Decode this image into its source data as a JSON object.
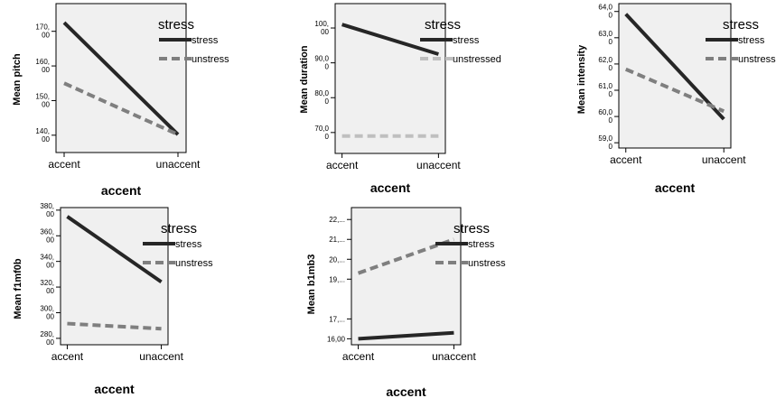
{
  "chart_data": [
    {
      "type": "line",
      "categories": [
        "accent",
        "unaccent"
      ],
      "xlabel": "accent",
      "ylabel": "Mean pitch",
      "ylim": [
        135,
        178
      ],
      "yticks": [
        {
          "value": 170,
          "label": "170,\n00"
        },
        {
          "value": 160,
          "label": "160,\n00"
        },
        {
          "value": 150,
          "label": "150,\n00"
        },
        {
          "value": 140,
          "label": "140,\n00"
        }
      ],
      "legend": {
        "title": "stress",
        "placement": "top-right"
      },
      "grid": false,
      "series": [
        {
          "name": "stress",
          "values": [
            172.5,
            140.2
          ],
          "color": "#262626",
          "dash": "solid"
        },
        {
          "name": "unstress",
          "values": [
            155.0,
            140.2
          ],
          "color": "#7f7f7f",
          "dash": "dashed"
        }
      ]
    },
    {
      "type": "line",
      "categories": [
        "accent",
        "unaccent"
      ],
      "xlabel": "accent",
      "ylabel": "Mean duration",
      "ylim": [
        64,
        107
      ],
      "yticks": [
        {
          "value": 100,
          "label": "100,\n00"
        },
        {
          "value": 90,
          "label": "90,0\n0"
        },
        {
          "value": 80,
          "label": "80,0\n0"
        },
        {
          "value": 70,
          "label": "70,0\n0"
        }
      ],
      "legend": {
        "title": "stress",
        "placement": "top-right"
      },
      "grid": false,
      "series": [
        {
          "name": "stress",
          "values": [
            101.0,
            92.5
          ],
          "color": "#262626",
          "dash": "solid"
        },
        {
          "name": "unstressed",
          "values": [
            69.0,
            69.0
          ],
          "color": "#bfbfbf",
          "dash": "dashed"
        }
      ]
    },
    {
      "type": "line",
      "categories": [
        "accent",
        "unaccent"
      ],
      "xlabel": "accent",
      "ylabel": "Mean intensity",
      "ylim": [
        58.8,
        64.3
      ],
      "yticks": [
        {
          "value": 64,
          "label": "64,0\n0"
        },
        {
          "value": 63,
          "label": "63,0\n0"
        },
        {
          "value": 62,
          "label": "62,0\n0"
        },
        {
          "value": 61,
          "label": "61,0\n0"
        },
        {
          "value": 60,
          "label": "60,0\n0"
        },
        {
          "value": 59,
          "label": "59,0\n0"
        }
      ],
      "legend": {
        "title": "stress",
        "placement": "top-right"
      },
      "grid": false,
      "series": [
        {
          "name": "stress",
          "values": [
            63.9,
            59.9
          ],
          "color": "#262626",
          "dash": "solid"
        },
        {
          "name": "unstress",
          "values": [
            61.8,
            60.2
          ],
          "color": "#7f7f7f",
          "dash": "dashed"
        }
      ]
    },
    {
      "type": "line",
      "categories": [
        "accent",
        "unaccent"
      ],
      "xlabel": "accent",
      "ylabel": "Mean f1mf0b",
      "ylim": [
        275,
        382
      ],
      "yticks": [
        {
          "value": 380,
          "label": "380,\n00"
        },
        {
          "value": 360,
          "label": "360,\n00"
        },
        {
          "value": 340,
          "label": "340,\n00"
        },
        {
          "value": 320,
          "label": "320,\n00"
        },
        {
          "value": 300,
          "label": "300,\n00"
        },
        {
          "value": 280,
          "label": "280,\n00"
        }
      ],
      "legend": {
        "title": "stress",
        "placement": "top-right"
      },
      "grid": false,
      "series": [
        {
          "name": "stress",
          "values": [
            375.0,
            324.0
          ],
          "color": "#262626",
          "dash": "solid"
        },
        {
          "name": "unstress",
          "values": [
            291.5,
            287.5
          ],
          "color": "#7f7f7f",
          "dash": "dashed"
        }
      ]
    },
    {
      "type": "line",
      "categories": [
        "accent",
        "unaccent"
      ],
      "xlabel": "accent",
      "ylabel": "Mean b1mb3",
      "ylim": [
        15.7,
        22.6
      ],
      "yticks": [
        {
          "value": 22,
          "label": "22,..."
        },
        {
          "value": 21,
          "label": "21,..."
        },
        {
          "value": 20,
          "label": "20,..."
        },
        {
          "value": 19,
          "label": "19,..."
        },
        {
          "value": 17,
          "label": "17,..."
        },
        {
          "value": 16,
          "label": "16,00"
        }
      ],
      "legend": {
        "title": "stress",
        "placement": "top-right"
      },
      "grid": false,
      "series": [
        {
          "name": "stress",
          "values": [
            16.0,
            16.3
          ],
          "color": "#262626",
          "dash": "solid"
        },
        {
          "name": "unstress",
          "values": [
            19.3,
            21.0
          ],
          "color": "#7f7f7f",
          "dash": "dashed"
        }
      ]
    }
  ]
}
